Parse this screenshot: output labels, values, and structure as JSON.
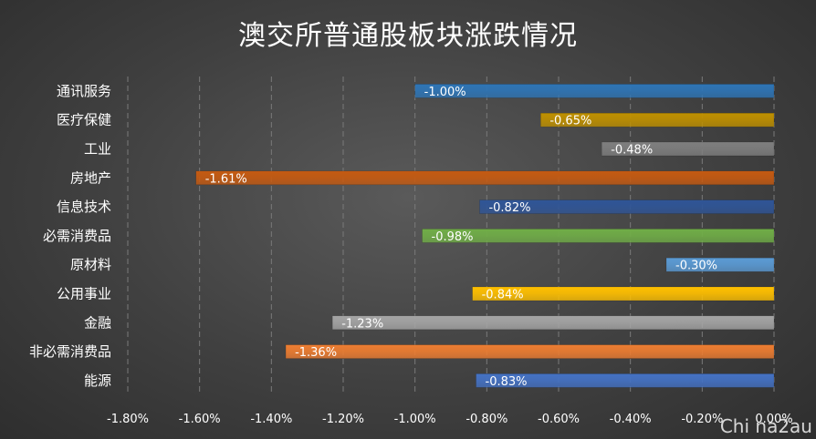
{
  "chart_data": {
    "type": "bar",
    "orientation": "horizontal",
    "title": "澳交所普通股板块涨跌情况",
    "categories": [
      "通讯服务",
      "医疗保健",
      "工业",
      "房地产",
      "信息技术",
      "必需消费品",
      "原材料",
      "公用事业",
      "金融",
      "非必需消费品",
      "能源"
    ],
    "values": [
      -1.0,
      -0.65,
      -0.48,
      -1.61,
      -0.82,
      -0.98,
      -0.3,
      -0.84,
      -1.23,
      -1.36,
      -0.83
    ],
    "data_labels": [
      "-1.00%",
      "-0.65%",
      "-0.48%",
      "-1.61%",
      "-0.82%",
      "-0.98%",
      "-0.30%",
      "-0.84%",
      "-1.23%",
      "-1.36%",
      "-0.83%"
    ],
    "colors": [
      "#2e75b6",
      "#bf9000",
      "#7f7f7f",
      "#c55a11",
      "#2f5597",
      "#70ad47",
      "#5b9bd5",
      "#ffc000",
      "#a5a5a5",
      "#ed7d31",
      "#4472c4"
    ],
    "xlim": [
      -1.8,
      0.0
    ],
    "x_ticks": [
      -1.8,
      -1.6,
      -1.4,
      -1.2,
      -1.0,
      -0.8,
      -0.6,
      -0.4,
      -0.2,
      0.0
    ],
    "x_tick_labels": [
      "-1.80%",
      "-1.60%",
      "-1.40%",
      "-1.20%",
      "-1.00%",
      "-0.80%",
      "-0.60%",
      "-0.40%",
      "-0.20%",
      "0.00%"
    ],
    "grid": true,
    "legend": false,
    "xlabel": "",
    "ylabel": ""
  },
  "watermark": "Chi na2au"
}
